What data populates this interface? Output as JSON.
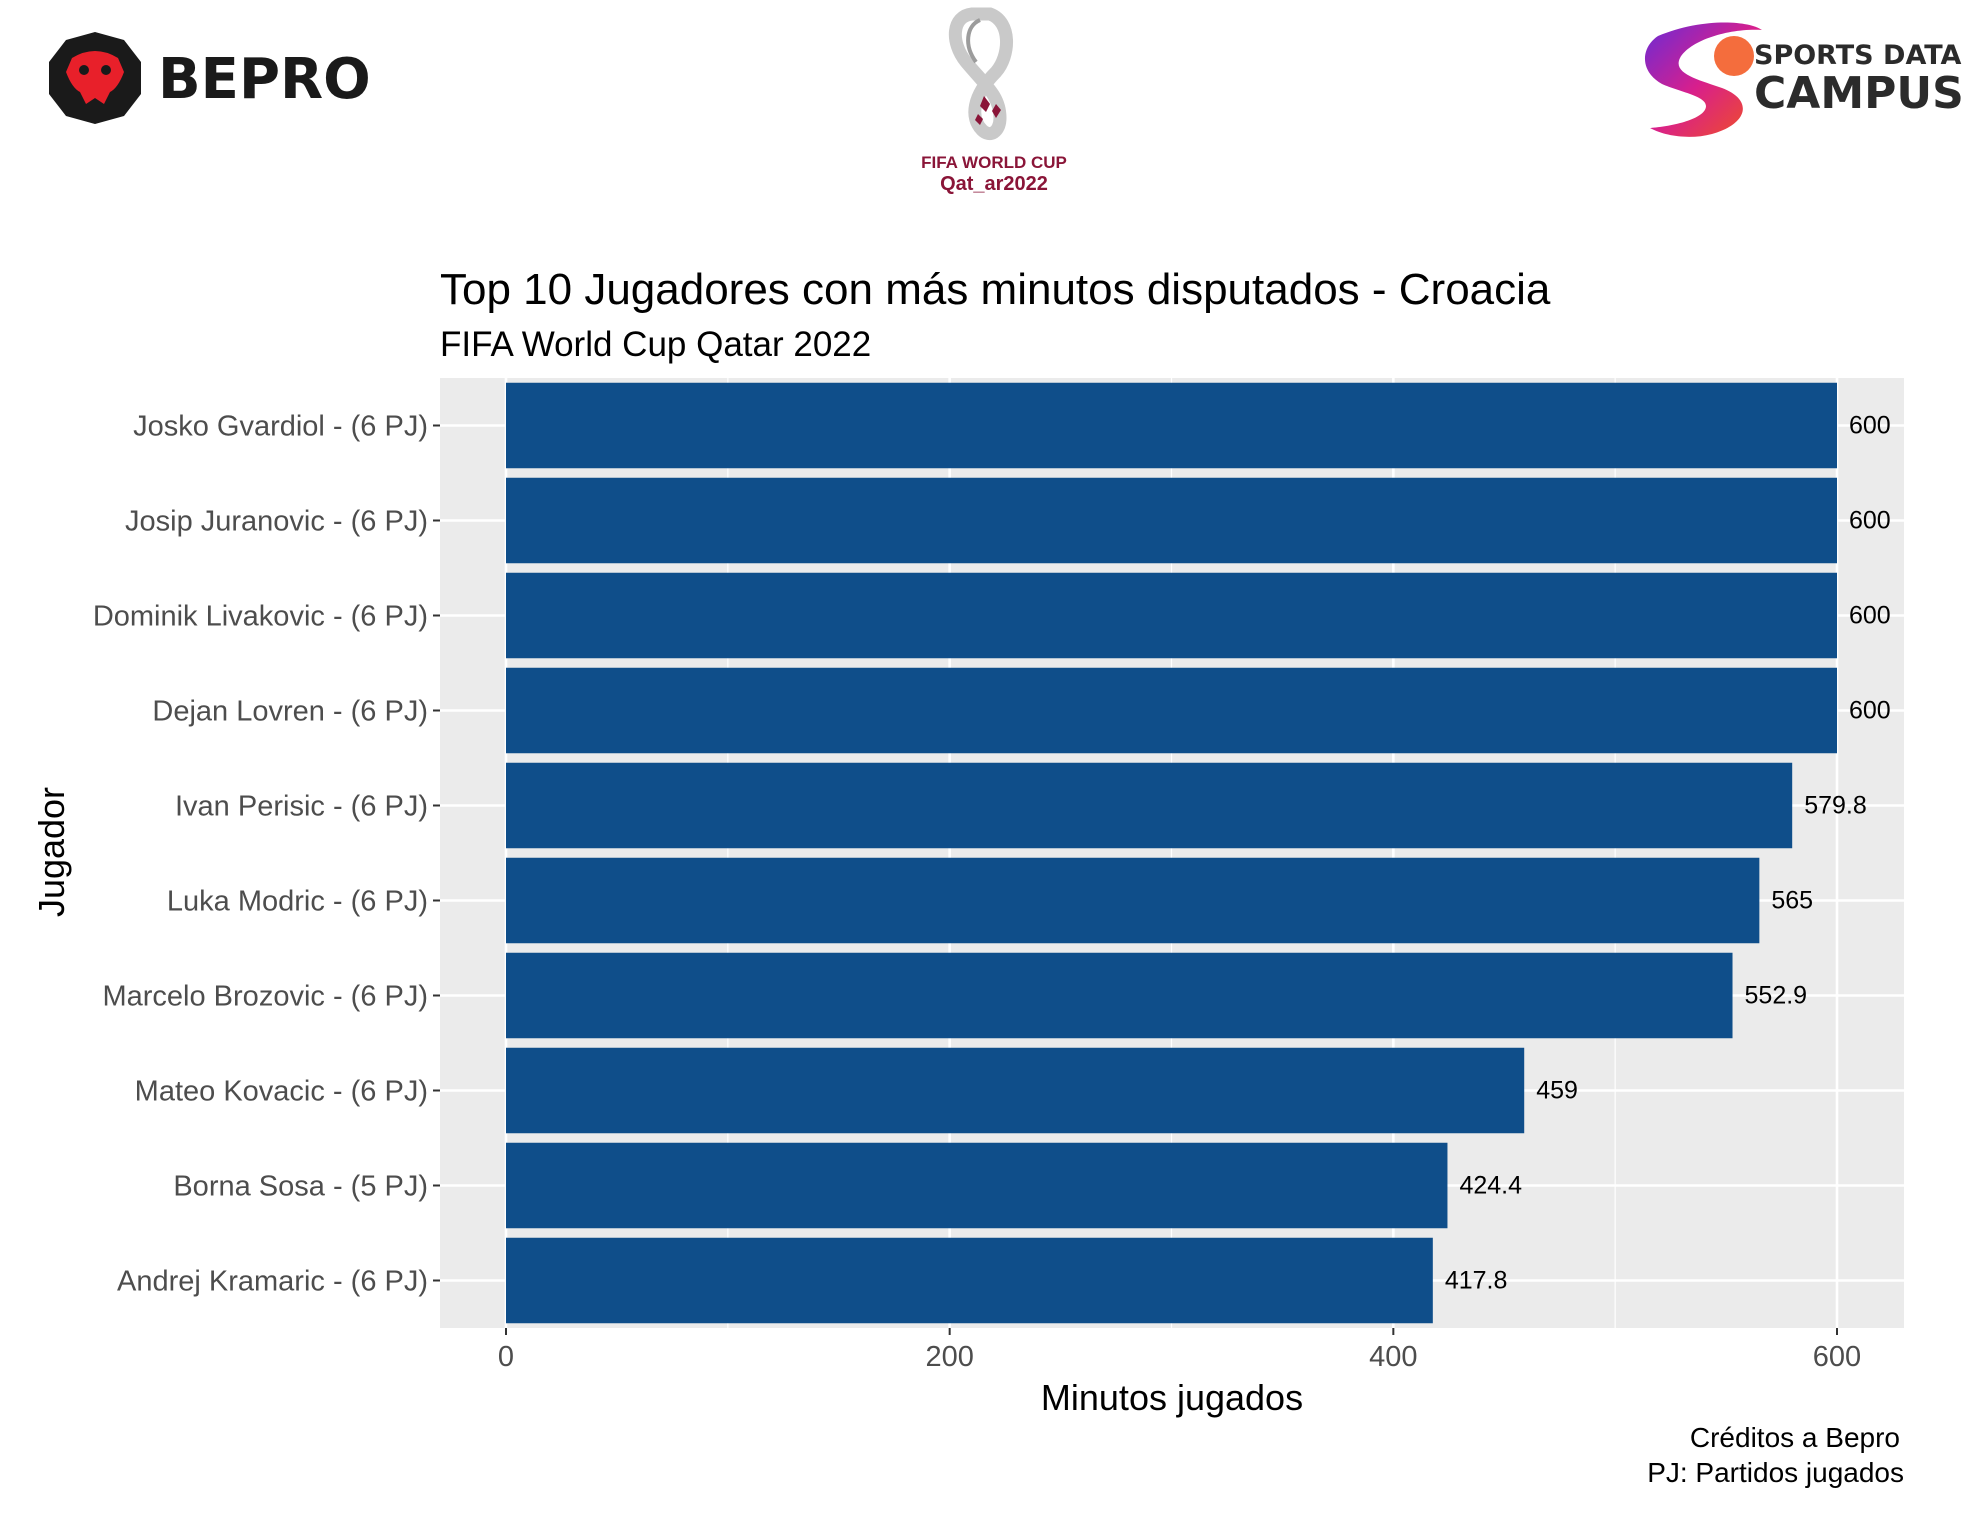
{
  "logos": {
    "bepro": {
      "text": "BEPRO"
    },
    "fifa": {
      "line1": "FIFA WORLD CUP",
      "line2": "Qat_ar2022"
    },
    "sdc": {
      "line1": "SPORTS DATA",
      "line2": "CAMPUS"
    }
  },
  "colors": {
    "bar": "#0f4e8a",
    "panel": "#ebebeb",
    "grid": "#ffffff",
    "axis_text": "#4d4d4d",
    "text": "#000000",
    "bepro_black": "#1a1a1a",
    "bepro_red": "#e8202a",
    "fifa_maroon": "#8a1538"
  },
  "chart_data": {
    "type": "bar",
    "orientation": "horizontal",
    "title": "Top 10 Jugadores con más minutos disputados - Croacia",
    "subtitle": "FIFA World Cup Qatar 2022",
    "xlabel": "Minutos jugados",
    "ylabel": "Jugador",
    "xlim": [
      -30,
      630
    ],
    "xticks": [
      0,
      200,
      400,
      600
    ],
    "grid": true,
    "categories": [
      "Josko Gvardiol - (6 PJ)",
      "Josip Juranovic - (6 PJ)",
      "Dominik Livakovic - (6 PJ)",
      "Dejan Lovren - (6 PJ)",
      "Ivan Perisic - (6 PJ)",
      "Luka Modric - (6 PJ)",
      "Marcelo Brozovic - (6 PJ)",
      "Mateo Kovacic - (6 PJ)",
      "Borna Sosa - (5 PJ)",
      "Andrej Kramaric - (6 PJ)"
    ],
    "values": [
      600,
      600,
      600,
      600,
      579.8,
      565,
      552.9,
      459,
      424.4,
      417.8
    ],
    "data_labels": [
      "600",
      "600",
      "600",
      "600",
      "579.8",
      "565",
      "552.9",
      "459",
      "424.4",
      "417.8"
    ],
    "caption": [
      "Créditos a Bepro",
      "PJ: Partidos jugados"
    ]
  }
}
